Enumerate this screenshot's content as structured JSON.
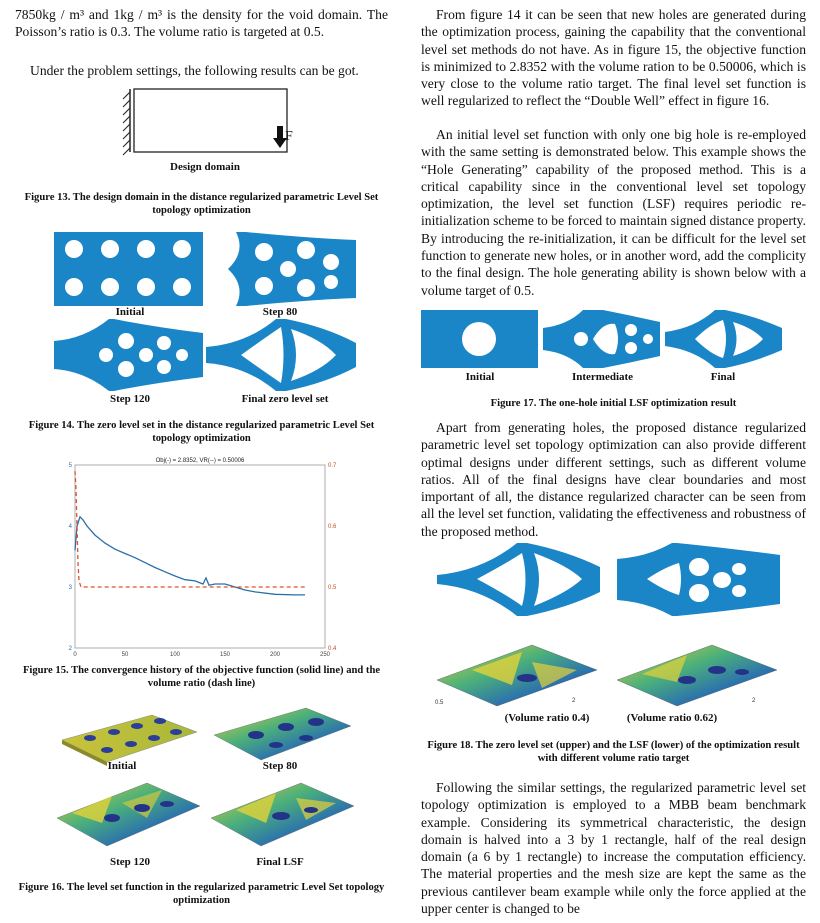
{
  "left": {
    "p_intro": "7850kg / m³ and 1kg / m³ is the density for the void domain. The Poisson’s ratio is 0.3. The volume ratio is targeted at 0.5.",
    "p_results": "Under the problem settings, the following results can be got.",
    "fig13": {
      "force_label": "F",
      "domain_label": "Design domain",
      "caption": "Figure 13. The design domain in the distance regularized parametric Level Set topology optimization"
    },
    "fig14": {
      "labels": [
        "Initial",
        "Step 80",
        "Step 120",
        "Final zero level set"
      ],
      "caption": "Figure 14. The zero level set in the distance regularized parametric Level Set topology optimization"
    },
    "fig15": {
      "title": "Obj(-) = 2.8352, VR(--) = 0.50006",
      "caption": "Figure 15. The convergence history of the objective function (solid line) and the volume ratio (dash line)"
    },
    "fig16": {
      "labels": [
        "Initial",
        "Step 80",
        "Step 120",
        "Final LSF"
      ],
      "caption": "Figure 16. The level set function in the regularized parametric Level Set topology optimization"
    }
  },
  "right": {
    "p1": "From figure 14 it can be seen that new holes are generated during the optimization process, gaining the capability that the conventional level set methods do not have. As in figure 15, the objective function is minimized to 2.8352 with the volume ration to be 0.50006, which is very close to the volume ratio target. The final level set function is well regularized to reflect the “Double Well” effect in figure 16.",
    "p2": "An initial level set function with only one big hole is re-employed with the same setting is demonstrated below. This example shows the “Hole Generating” capability of the proposed method. This is a critical capability since in the conventional level set topology optimization, the level set function (LSF) requires periodic re-initialization scheme to be forced to maintain signed distance property. By introducing the re-initialization, it can be difficult for the level set function to generate new holes, or in another word, add the complicity to the final design. The hole generating ability is shown below with a volume target of 0.5.",
    "fig17": {
      "labels": [
        "Initial",
        "Intermediate",
        "Final"
      ],
      "caption": "Figure 17. The one-hole initial LSF optimization result"
    },
    "p3": "Apart from generating holes, the proposed distance regularized parametric level set topology optimization can also provide different optimal designs under different settings, such as different volume ratios.  All of the final designs have clear boundaries and most important of all, the distance regularized character can be seen from all the level set function, validating the effectiveness and robustness of the proposed method.",
    "fig18": {
      "labels": [
        "(Volume ratio 0.4)",
        "(Volume ratio 0.62)"
      ],
      "caption": "Figure 18. The zero level set (upper) and the LSF (lower) of the optimization result with different volume ratio target"
    },
    "p4": "Following the similar settings, the regularized parametric level set topology optimization is employed to a MBB beam benchmark example. Considering its symmetrical characteristic, the design domain is halved into a 3 by 1 rectangle, half of the real design domain (a 6 by 1 rectangle) to increase the computation efficiency. The material properties and the mesh size are kept the same as the previous cantilever beam example while only the force applied at the upper center is changed to be"
  },
  "chart_data": {
    "type": "line",
    "title": "Obj(-) = 2.8352, VR(--) = 0.50006",
    "x_ticks": [
      0,
      50,
      100,
      150,
      200,
      250
    ],
    "y_left_ticks": [
      2,
      3,
      4,
      5
    ],
    "y_right_ticks": [
      0.4,
      0.5,
      0.6,
      0.7
    ],
    "xlim": [
      0,
      250
    ],
    "ylim_left": [
      2,
      5
    ],
    "ylim_right": [
      0.4,
      0.7
    ],
    "series": [
      {
        "axis": "left",
        "style": "solid",
        "color": "#2a6fa8",
        "x": [
          0,
          1,
          2,
          3,
          5,
          8,
          12,
          20,
          30,
          40,
          50,
          60,
          70,
          80,
          90,
          100,
          110,
          120,
          128,
          131,
          134,
          140,
          150,
          160,
          170,
          180,
          200,
          220,
          230
        ],
        "y": [
          3.6,
          3.8,
          4.0,
          4.05,
          4.15,
          4.1,
          4.0,
          3.85,
          3.72,
          3.62,
          3.55,
          3.48,
          3.4,
          3.32,
          3.25,
          3.18,
          3.12,
          3.1,
          3.05,
          3.15,
          3.03,
          3.05,
          3.05,
          3.0,
          2.95,
          2.92,
          2.88,
          2.87,
          2.87
        ]
      },
      {
        "axis": "right",
        "style": "dash",
        "color": "#e0502a",
        "x": [
          0,
          1,
          2,
          3,
          4,
          6,
          8,
          12,
          20,
          50,
          100,
          130,
          150,
          200,
          230
        ],
        "y": [
          0.69,
          0.66,
          0.6,
          0.54,
          0.51,
          0.5,
          0.5,
          0.5,
          0.5,
          0.5,
          0.5,
          0.5,
          0.5,
          0.5,
          0.5
        ]
      }
    ]
  },
  "colors": {
    "material": "#1a86c8",
    "void": "#ffffff",
    "obj": "#2a6fa8",
    "vr": "#e0502a"
  }
}
